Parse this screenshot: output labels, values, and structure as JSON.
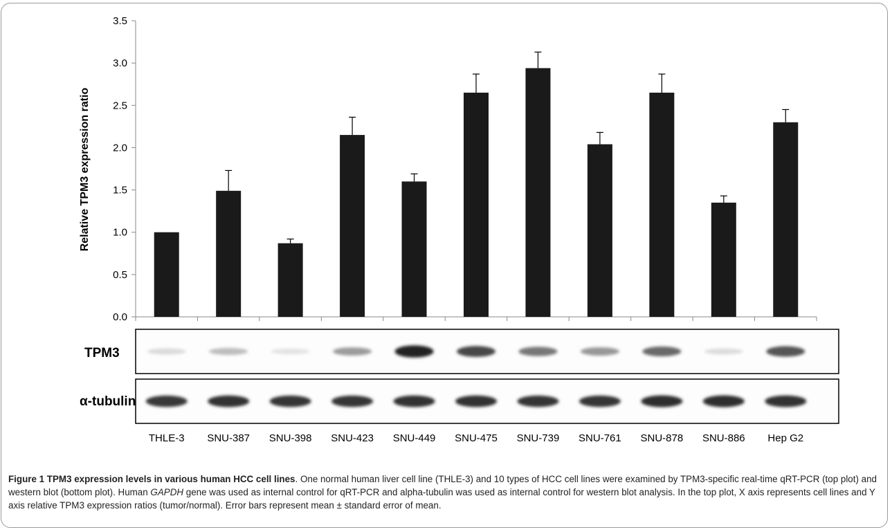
{
  "chart_data": {
    "type": "bar",
    "categories": [
      "THLE-3",
      "SNU-387",
      "SNU-398",
      "SNU-423",
      "SNU-449",
      "SNU-475",
      "SNU-739",
      "SNU-761",
      "SNU-878",
      "SNU-886",
      "Hep G2"
    ],
    "values": [
      1.0,
      1.49,
      0.87,
      2.15,
      1.6,
      2.65,
      2.94,
      2.04,
      2.65,
      1.35,
      2.3
    ],
    "errors": [
      0.0,
      0.24,
      0.05,
      0.21,
      0.09,
      0.22,
      0.19,
      0.14,
      0.22,
      0.08,
      0.15
    ],
    "ylabel": "Relative TPM3 expression ratio",
    "xlabel": "",
    "ylim": [
      0,
      3.5
    ],
    "yticks": [
      "0.0",
      "0.5",
      "1.0",
      "1.5",
      "2.0",
      "2.5",
      "3.0",
      "3.5"
    ],
    "grid": false,
    "bar_color": "#1a1a1a"
  },
  "blots": {
    "tpm3_label": "TPM3",
    "tpm3_intensity": [
      0.08,
      0.22,
      0.04,
      0.38,
      0.95,
      0.78,
      0.55,
      0.4,
      0.62,
      0.07,
      0.72
    ],
    "tubulin_label": "α-tubulin",
    "tubulin_intensity": [
      0.85,
      0.88,
      0.86,
      0.86,
      0.88,
      0.88,
      0.86,
      0.86,
      0.9,
      0.9,
      0.88
    ]
  },
  "caption": {
    "title": "Figure 1 TPM3 expression levels in various human HCC cell lines",
    "text_before_italic": ". One normal human liver cell line (THLE-3) and 10 types of HCC cell lines were examined by TPM3-specific real-time qRT-PCR (top plot) and western blot (bottom plot). Human ",
    "italic": "GAPDH",
    "text_after_italic": " gene was used as internal control for qRT-PCR and alpha-tubulin was used as internal control for western blot analysis. In the top plot, X axis represents cell lines and Y axis relative TPM3 expression ratios (tumor/normal). Error bars represent mean ± standard error of mean."
  }
}
